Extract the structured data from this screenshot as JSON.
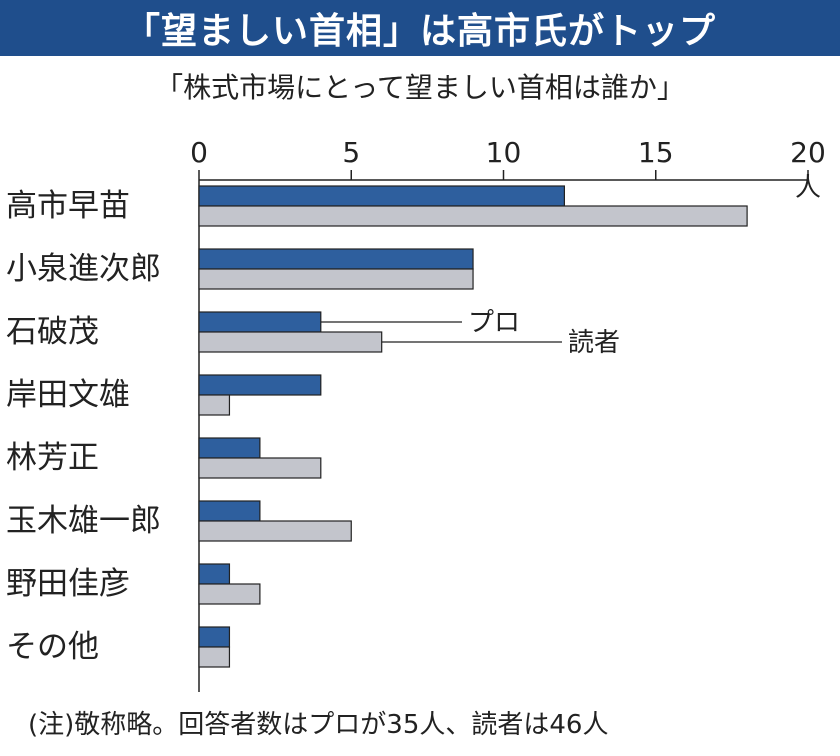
{
  "header": {
    "title": "「望ましい首相」は高市氏がトップ",
    "subtitle": "「株式市場にとって望ましい首相は誰か」"
  },
  "chart_data": {
    "type": "bar",
    "orientation": "horizontal",
    "categories": [
      "高市早苗",
      "小泉進次郎",
      "石破茂",
      "岸田文雄",
      "林芳正",
      "玉木雄一郎",
      "野田佳彦",
      "その他"
    ],
    "series": [
      {
        "name": "プロ",
        "values": [
          12,
          9,
          4,
          4,
          2,
          2,
          1,
          1
        ],
        "color": "#2e5f9e"
      },
      {
        "name": "読者",
        "values": [
          18,
          9,
          6,
          1,
          4,
          5,
          2,
          1
        ],
        "color": "#c3c5cc"
      }
    ],
    "xlim": [
      0,
      20
    ],
    "xticks": [
      0,
      5,
      10,
      15,
      20
    ],
    "xunit": "人",
    "legend": "inline callouts at 石破茂 bars",
    "grid": false
  },
  "note": "(注)敬称略。回答者数はプロが35人、読者は46人"
}
